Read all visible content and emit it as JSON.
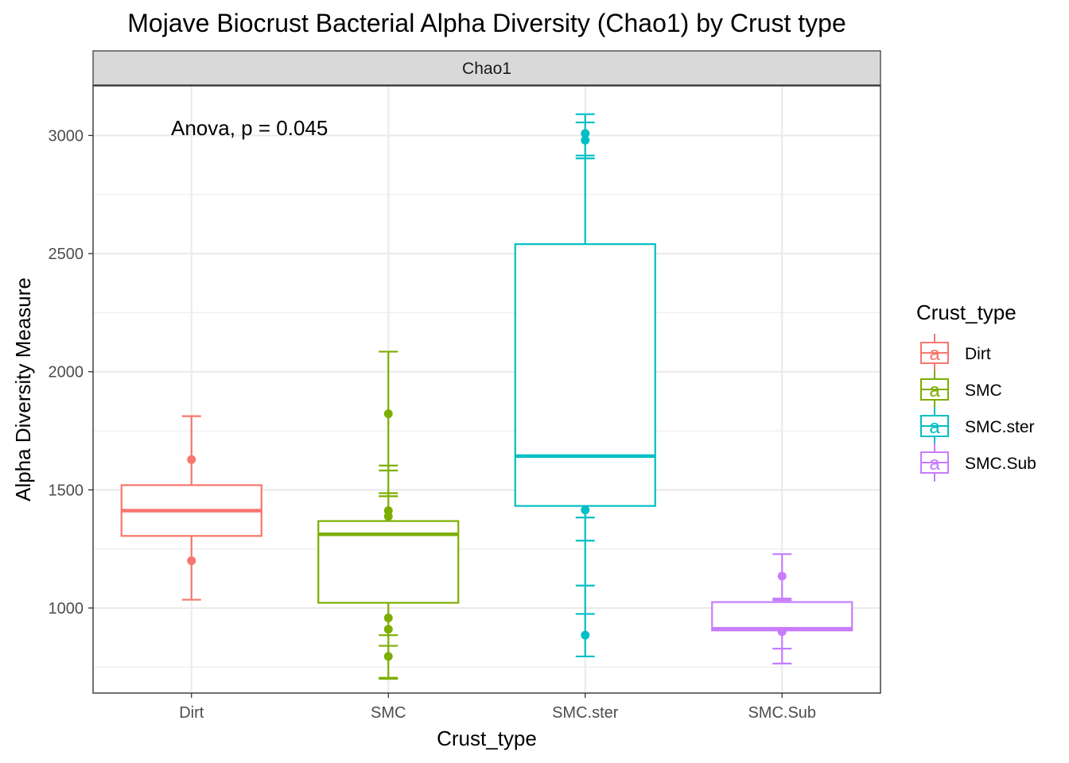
{
  "chart_data": {
    "type": "boxplot",
    "title": "Mojave Biocrust Bacterial Alpha Diversity (Chao1) by Crust type",
    "facet_label": "Chao1",
    "xlabel": "Crust_type",
    "ylabel": "Alpha Diversity Measure",
    "ylim": [
      640,
      3210
    ],
    "y_ticks": [
      1000,
      1500,
      2000,
      2500,
      3000
    ],
    "y_minor_ticks": [
      750,
      1250,
      1750,
      2250,
      2750
    ],
    "grid": true,
    "annotation": "Anova, p = 0.045",
    "legend": {
      "title": "Crust_type",
      "placement": "right",
      "key_glyph": "a"
    },
    "categories": [
      "Dirt",
      "SMC",
      "SMC.ster",
      "SMC.Sub"
    ],
    "series": [
      {
        "name": "Dirt",
        "color": "#F8766D",
        "box": {
          "q1": 1305,
          "median": 1412,
          "q3": 1520
        },
        "points": [
          1628,
          1200
        ],
        "error_caps": [
          1812,
          1035
        ]
      },
      {
        "name": "SMC",
        "color": "#7CAE00",
        "box": {
          "q1": 1022,
          "median": 1312,
          "q3": 1368
        },
        "points": [
          1822,
          1412,
          1388,
          958,
          910,
          795
        ],
        "error_caps": [
          2085,
          1603,
          1582,
          1486,
          1473,
          885,
          840,
          705,
          700
        ]
      },
      {
        "name": "SMC.ster",
        "color": "#00BFC4",
        "box": {
          "q1": 1432,
          "median": 1643,
          "q3": 2540
        },
        "points": [
          3008,
          2980,
          1415,
          885
        ],
        "error_caps": [
          3090,
          3055,
          2915,
          2903,
          1383,
          1285,
          1095,
          975,
          795
        ]
      },
      {
        "name": "SMC.Sub",
        "color": "#C77CFF",
        "box": {
          "q1": 905,
          "median": 912,
          "q3": 1025
        },
        "points": [
          1135,
          900
        ],
        "error_caps": [
          1228,
          1040,
          1033,
          828,
          765
        ]
      }
    ]
  }
}
